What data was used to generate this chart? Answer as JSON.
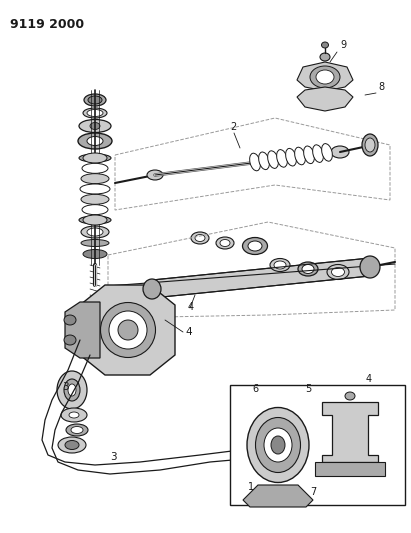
{
  "title": "9119 2000",
  "bg_color": "#ffffff",
  "line_color": "#1a1a1a",
  "gray1": "#cccccc",
  "gray2": "#aaaaaa",
  "gray3": "#888888",
  "gray4": "#555555",
  "fig_width": 4.11,
  "fig_height": 5.33,
  "dpi": 100
}
